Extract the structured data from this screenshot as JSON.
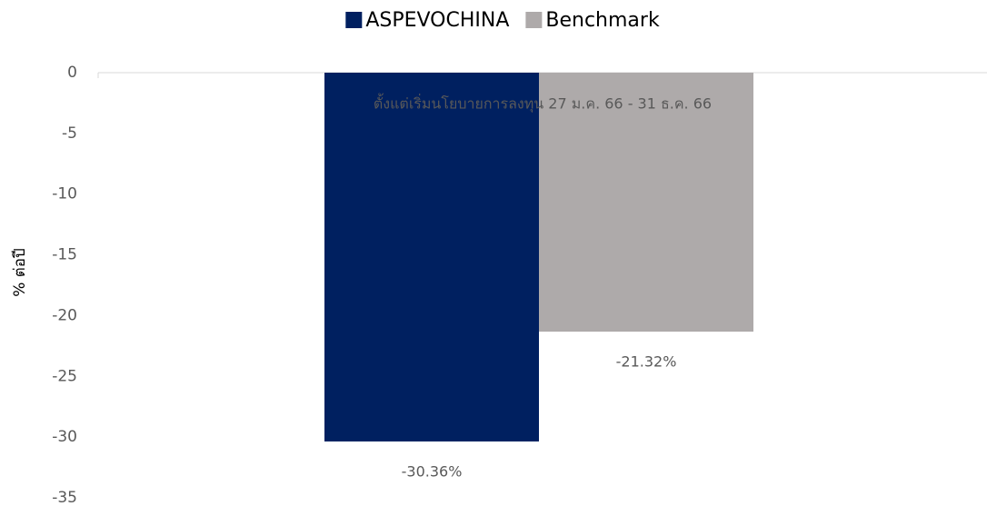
{
  "chart_data": {
    "type": "bar",
    "categories": [
      "ตั้งแต่เริ่มนโยบายการลงทุน 27 ม.ค. 66 - 31 ธ.ค. 66"
    ],
    "series": [
      {
        "name": "ASPEVOCHINA",
        "color": "#002060",
        "values": [
          -30.36
        ],
        "value_labels": [
          "-30.36%"
        ]
      },
      {
        "name": "Benchmark",
        "color": "#aeaaaa",
        "values": [
          -21.32
        ],
        "value_labels": [
          "-21.32%"
        ]
      }
    ],
    "ylabel": "% ต่อปี",
    "ylim": [
      0,
      -35
    ],
    "yticks": [
      0,
      -5,
      -10,
      -15,
      -20,
      -25,
      -30,
      -35
    ],
    "legend": "top"
  }
}
